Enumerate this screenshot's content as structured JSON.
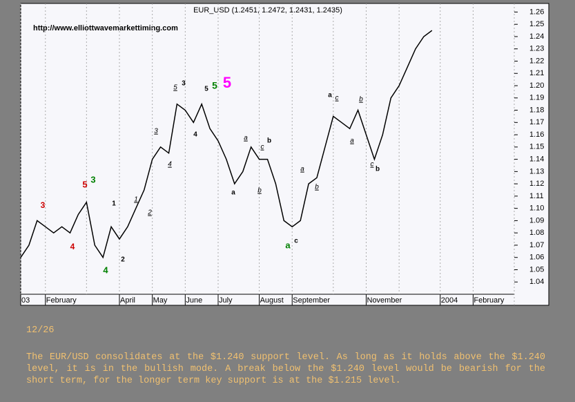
{
  "chart_data": {
    "type": "line",
    "title": "EUR_USD (1.2451, 1.2472, 1.2431, 1.2435)",
    "source": "http://www.elliottwavemarkettiming.com",
    "categories": [
      "03",
      null,
      null,
      "February",
      null,
      null,
      null,
      null,
      null,
      null,
      null,
      null,
      "April",
      null,
      null,
      null,
      "May",
      null,
      null,
      null,
      "June",
      null,
      null,
      null,
      "July",
      null,
      null,
      null,
      null,
      "August",
      null,
      null,
      null,
      "September",
      null,
      null,
      null,
      null,
      null,
      null,
      null,
      null,
      "November",
      null,
      null,
      null,
      null,
      null,
      null,
      null,
      null,
      "2004",
      null,
      null,
      null,
      "February",
      null,
      null,
      null,
      null
    ],
    "series": [
      {
        "name": "EUR_USD",
        "color": "#000000",
        "values": [
          1.06,
          1.07,
          1.09,
          1.085,
          1.08,
          1.085,
          1.08,
          1.095,
          1.105,
          1.07,
          1.06,
          1.085,
          1.075,
          1.085,
          1.1,
          1.115,
          1.14,
          1.15,
          1.145,
          1.185,
          1.18,
          1.17,
          1.185,
          1.165,
          1.155,
          1.14,
          1.12,
          1.13,
          1.15,
          1.14,
          1.14,
          1.12,
          1.09,
          1.085,
          1.09,
          1.12,
          1.125,
          1.15,
          1.175,
          1.17,
          1.165,
          1.18,
          1.16,
          1.14,
          1.16,
          1.19,
          1.2,
          1.215,
          1.23,
          1.24,
          1.245,
          null,
          null,
          null,
          null,
          null,
          null,
          null,
          null,
          null
        ]
      }
    ],
    "ylim": [
      1.021,
      1.267
    ],
    "yticks": [
      1.04,
      1.05,
      1.06,
      1.07,
      1.08,
      1.09,
      {
        "value": 1.1,
        "label": "1.10"
      },
      1.11,
      1.12,
      1.13,
      1.14,
      1.15,
      1.16,
      1.17,
      1.18,
      1.19,
      {
        "value": 1.2,
        "label": "1.20"
      },
      1.21,
      1.22,
      1.23,
      1.24,
      1.25,
      1.26
    ],
    "y_axis_side": "right",
    "grid": true,
    "annotations": [
      {
        "text": "3",
        "color": "#cc0000"
      },
      {
        "text": "4",
        "color": "#cc0000"
      },
      {
        "text": "5",
        "color": "#cc0000"
      },
      {
        "text": "3",
        "color": "#008000"
      },
      {
        "text": "4",
        "color": "#008000"
      },
      {
        "text": "1",
        "color": "#000000"
      },
      {
        "text": "2",
        "color": "#000000"
      },
      {
        "text": "1",
        "color": "#000000"
      },
      {
        "text": "2",
        "color": "#000000"
      },
      {
        "text": "3",
        "color": "#000000"
      },
      {
        "text": "4",
        "color": "#000000"
      },
      {
        "text": "5",
        "color": "#000000"
      },
      {
        "text": "3",
        "color": "#000000"
      },
      {
        "text": "4",
        "color": "#000000"
      },
      {
        "text": "5",
        "color": "#000000"
      },
      {
        "text": "5",
        "color": "#008000"
      },
      {
        "text": "5",
        "color": "#ff00ff"
      },
      {
        "text": "a",
        "color": "#000000"
      },
      {
        "text": "a",
        "color": "#000000"
      },
      {
        "text": "b",
        "color": "#000000"
      },
      {
        "text": "c",
        "color": "#000000"
      },
      {
        "text": "b",
        "color": "#000000"
      },
      {
        "text": "a",
        "color": "#008000"
      },
      {
        "text": "c",
        "color": "#000000"
      },
      {
        "text": "a",
        "color": "#000000"
      },
      {
        "text": "b",
        "color": "#000000"
      },
      {
        "text": "a",
        "color": "#000000"
      },
      {
        "text": "c",
        "color": "#000000"
      },
      {
        "text": "a",
        "color": "#000000"
      },
      {
        "text": "b",
        "color": "#000000"
      },
      {
        "text": "c",
        "color": "#000000"
      },
      {
        "text": "b",
        "color": "#000000"
      }
    ]
  },
  "commentary": {
    "date": "12/26",
    "text": "The EUR/USD consolidates at the $1.240 support level. As long as it holds above the $1.240 level, it is in the bullish mode. A break below the $1.240 level would be bearish for the short term, for the longer term key support is at the $1.215 level."
  }
}
